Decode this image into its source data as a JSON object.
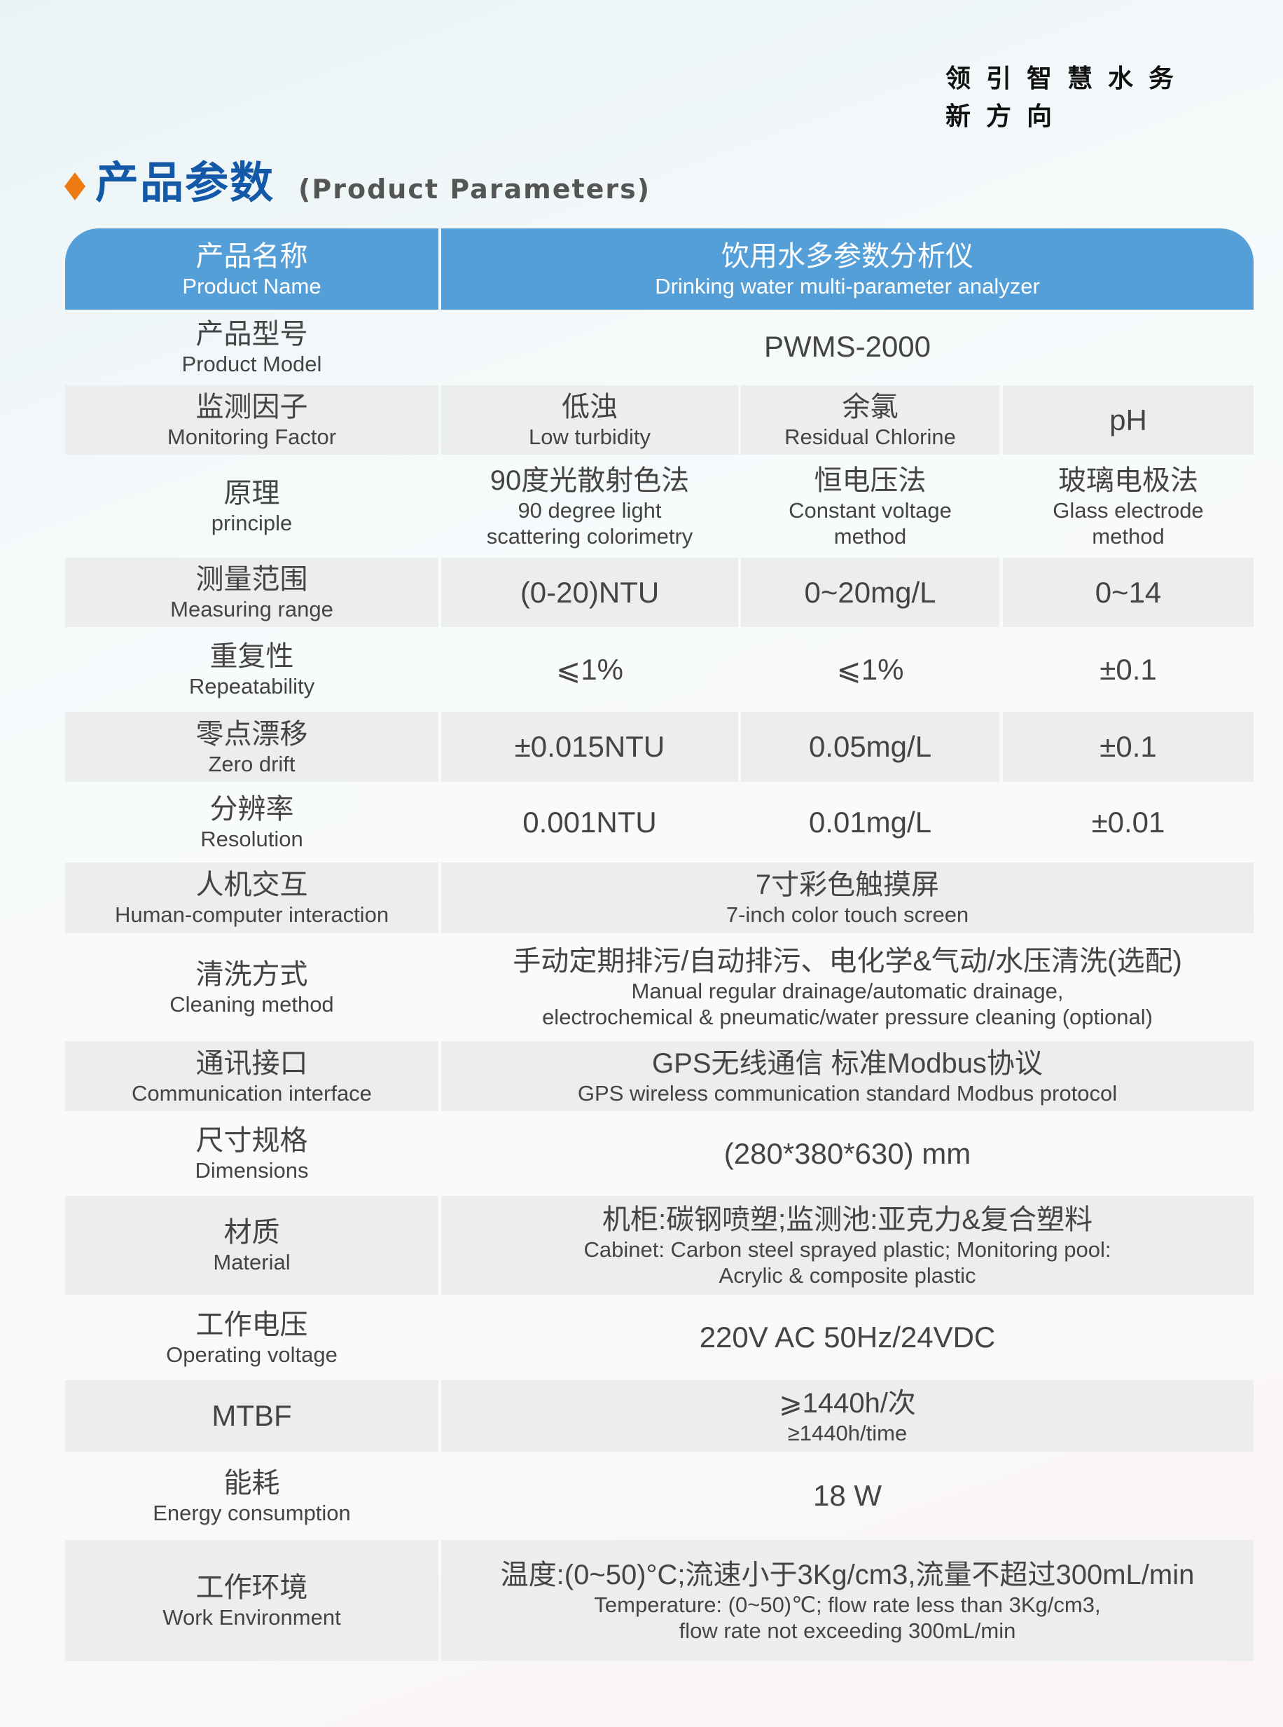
{
  "slogan": {
    "line1": "领引智慧水务",
    "line2": "新方向"
  },
  "heading": {
    "cn": "产品参数",
    "en": "(Product Parameters)"
  },
  "colors": {
    "header_bg": "#559fd8",
    "accent": "#ee7a12",
    "title": "#1458a8",
    "row_shade": "#eceeee"
  },
  "header": {
    "label_cn": "产品名称",
    "label_en": "Product Name",
    "value_cn": "饮用水多参数分析仪",
    "value_en": "Drinking water multi-parameter analyzer"
  },
  "rows": [
    {
      "cn": "产品型号",
      "en": "Product Model",
      "cells": [
        {
          "val": "PWMS-2000"
        }
      ]
    },
    {
      "cn": "监测因子",
      "en": "Monitoring Factor",
      "cells": [
        {
          "cn": "低浊",
          "en": "Low turbidity"
        },
        {
          "cn": "余氯",
          "en": "Residual Chlorine"
        },
        {
          "val": "pH"
        }
      ]
    },
    {
      "cn": "原理",
      "en": "principle",
      "cells": [
        {
          "cn": "90度光散射色法",
          "en": "90 degree light\nscattering colorimetry"
        },
        {
          "cn": "恒电压法",
          "en": "Constant voltage\nmethod"
        },
        {
          "cn": "玻璃电极法",
          "en": "Glass electrode\nmethod"
        }
      ]
    },
    {
      "cn": "测量范围",
      "en": "Measuring range",
      "cells": [
        {
          "val": "(0-20)NTU"
        },
        {
          "val": "0~20mg/L"
        },
        {
          "val": "0~14"
        }
      ]
    },
    {
      "cn": "重复性",
      "en": "Repeatability",
      "cells": [
        {
          "val": "⩽1%"
        },
        {
          "val": "⩽1%"
        },
        {
          "val": "±0.1"
        }
      ]
    },
    {
      "cn": "零点漂移",
      "en": "Zero drift",
      "cells": [
        {
          "val": "±0.015NTU"
        },
        {
          "val": "0.05mg/L"
        },
        {
          "val": "±0.1"
        }
      ]
    },
    {
      "cn": "分辨率",
      "en": "Resolution",
      "cells": [
        {
          "val": "0.001NTU"
        },
        {
          "val": "0.01mg/L"
        },
        {
          "val": "±0.01"
        }
      ]
    },
    {
      "cn": "人机交互",
      "en": "Human-computer interaction",
      "cells": [
        {
          "cn": "7寸彩色触摸屏",
          "en": "7-inch color touch screen"
        }
      ]
    },
    {
      "cn": "清洗方式",
      "en": "Cleaning method",
      "cells": [
        {
          "cn": "手动定期排污/自动排污、电化学&气动/水压清洗(选配)",
          "en": "Manual regular drainage/automatic drainage,\nelectrochemical & pneumatic/water pressure cleaning (optional)"
        }
      ]
    },
    {
      "cn": "通讯接口",
      "en": "Communication interface",
      "cells": [
        {
          "cn": "GPS无线通信 标准Modbus协议",
          "en": "GPS wireless communication standard Modbus protocol"
        }
      ]
    },
    {
      "cn": "尺寸规格",
      "en": "Dimensions",
      "cells": [
        {
          "val": "(280*380*630) mm"
        }
      ]
    },
    {
      "cn": "材质",
      "en": "Material",
      "cells": [
        {
          "cn": "机柜:碳钢喷塑;监测池:亚克力&复合塑料",
          "en": "Cabinet: Carbon steel sprayed plastic; Monitoring pool:\nAcrylic & composite plastic"
        }
      ]
    },
    {
      "cn": "工作电压",
      "en": "Operating voltage",
      "cells": [
        {
          "val": "220V AC 50Hz/24VDC"
        }
      ]
    },
    {
      "cn": "",
      "en": "MTBF",
      "cells": [
        {
          "cn": "⩾1440h/次",
          "en": "≥1440h/time"
        }
      ]
    },
    {
      "cn": "能耗",
      "en": "Energy consumption",
      "cells": [
        {
          "val": "18 W"
        }
      ]
    },
    {
      "cn": "工作环境",
      "en": "Work Environment",
      "cells": [
        {
          "cn": "温度:(0~50)°C;流速小于3Kg/cm3,流量不超过300mL/min",
          "en": "Temperature: (0~50)℃; flow rate less than 3Kg/cm3,\nflow rate not exceeding 300mL/min"
        }
      ]
    }
  ]
}
